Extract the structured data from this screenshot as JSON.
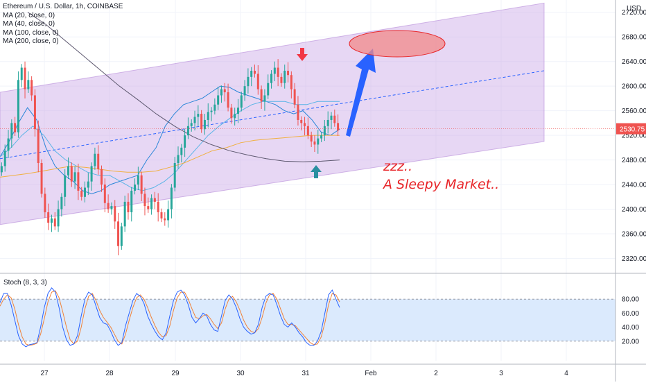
{
  "chart_data": {
    "type": "candlestick",
    "title": "Ethereum / U.S. Dollar, 1h, COINBASE",
    "currency": "USD",
    "indicators": [
      "MA (20, close, 0)",
      "MA (40, close, 0)",
      "MA (100, close, 0)",
      "MA (200, close, 0)"
    ],
    "last_price": "2530.75",
    "x_ticks": [
      "27",
      "28",
      "29",
      "30",
      "31",
      "Feb",
      "2",
      "3",
      "4"
    ],
    "y_ticks": [
      2320,
      2360,
      2400,
      2440,
      2480,
      2520,
      2560,
      2600,
      2640,
      2680,
      2720
    ],
    "ylim": [
      2298,
      2740
    ],
    "candle_closes": [
      2470,
      2495,
      2515,
      2540,
      2525,
      2610,
      2630,
      2595,
      2610,
      2585,
      2530,
      2475,
      2425,
      2395,
      2378,
      2385,
      2372,
      2400,
      2420,
      2455,
      2470,
      2445,
      2460,
      2430,
      2420,
      2435,
      2445,
      2470,
      2490,
      2465,
      2440,
      2410,
      2400,
      2405,
      2380,
      2340,
      2372,
      2412,
      2395,
      2430,
      2440,
      2455,
      2425,
      2405,
      2400,
      2418,
      2412,
      2395,
      2385,
      2382,
      2400,
      2435,
      2475,
      2488,
      2500,
      2520,
      2535,
      2540,
      2550,
      2555,
      2530,
      2545,
      2558,
      2560,
      2570,
      2585,
      2595,
      2590,
      2565,
      2548,
      2555,
      2565,
      2585,
      2600,
      2615,
      2625,
      2620,
      2595,
      2575,
      2585,
      2605,
      2620,
      2630,
      2615,
      2605,
      2625,
      2618,
      2595,
      2570,
      2545,
      2540,
      2535,
      2520,
      2510,
      2505,
      2515,
      2520,
      2535,
      2545,
      2552,
      2540,
      2528
    ],
    "ma_series": [
      {
        "name": "MA (20, close, 0)",
        "color": "#2b86d8",
        "values": [
          2485,
          2510,
          2540,
          2565,
          2545,
          2500,
          2470,
          2455,
          2445,
          2430,
          2425,
          2430,
          2440,
          2445,
          2450,
          2455,
          2480,
          2500,
          2535,
          2555,
          2570,
          2575,
          2580,
          2590,
          2600,
          2598,
          2590,
          2585,
          2580,
          2575,
          2570,
          2560,
          2555,
          2560,
          2545,
          2525,
          2520,
          2530
        ]
      },
      {
        "name": "MA (40, close, 0)",
        "color": "#5ab4e6",
        "values": [
          2485,
          2500,
          2520,
          2535,
          2520,
          2495,
          2480,
          2470,
          2460,
          2455,
          2455,
          2445,
          2435,
          2430,
          2435,
          2445,
          2460,
          2480,
          2500,
          2520,
          2535,
          2548,
          2560,
          2570,
          2575,
          2575,
          2575,
          2570,
          2570,
          2575,
          2575,
          2575
        ]
      },
      {
        "name": "MA (100, close, 0)",
        "color": "#f0b040",
        "values": [
          2452,
          2455,
          2458,
          2462,
          2466,
          2470,
          2468,
          2465,
          2462,
          2460,
          2460,
          2462,
          2468,
          2475,
          2485,
          2495,
          2500,
          2508,
          2512,
          2514,
          2516,
          2518,
          2520,
          2520,
          2520
        ]
      },
      {
        "name": "MA (200, close, 0)",
        "color": "#5e5970",
        "values": [
          2720,
          2700,
          2675,
          2650,
          2625,
          2600,
          2578,
          2555,
          2535,
          2518,
          2505,
          2495,
          2488,
          2482,
          2478,
          2477,
          2478,
          2480
        ]
      }
    ],
    "channel": {
      "upper": [
        2590,
        2735
      ],
      "lower": [
        2375,
        2510
      ]
    },
    "midline": [
      2482,
      2625
    ],
    "stochastic": {
      "name": "Stoch (8, 3, 3)",
      "y_ticks": [
        20,
        40,
        60,
        80
      ],
      "upper_band": 80,
      "lower_band": 20,
      "k": [
        75,
        88,
        88,
        72,
        50,
        28,
        16,
        12,
        15,
        16,
        18,
        40,
        68,
        88,
        96,
        90,
        68,
        40,
        22,
        14,
        16,
        28,
        56,
        80,
        90,
        86,
        70,
        54,
        46,
        44,
        34,
        22,
        14,
        18,
        42,
        60,
        78,
        88,
        84,
        74,
        56,
        44,
        34,
        26,
        22,
        32,
        56,
        78,
        90,
        93,
        86,
        72,
        54,
        46,
        52,
        60,
        56,
        44,
        36,
        34,
        56,
        78,
        86,
        80,
        68,
        52,
        40,
        34,
        30,
        32,
        44,
        68,
        84,
        88,
        86,
        72,
        56,
        44,
        40,
        46,
        40,
        32,
        26,
        18,
        14,
        14,
        20,
        34,
        60,
        86,
        93,
        80,
        68
      ],
      "d": [
        70,
        80,
        86,
        82,
        66,
        44,
        26,
        16,
        14,
        15,
        17,
        30,
        52,
        76,
        90,
        92,
        82,
        62,
        40,
        22,
        16,
        20,
        40,
        66,
        84,
        88,
        78,
        64,
        54,
        47,
        40,
        30,
        20,
        16,
        30,
        50,
        68,
        82,
        86,
        80,
        68,
        54,
        42,
        32,
        26,
        28,
        42,
        64,
        82,
        90,
        90,
        80,
        66,
        54,
        52,
        56,
        58,
        52,
        44,
        38,
        46,
        66,
        80,
        84,
        76,
        64,
        50,
        40,
        34,
        32,
        38,
        54,
        74,
        86,
        88,
        80,
        66,
        52,
        44,
        44,
        42,
        36,
        30,
        24,
        18,
        15,
        16,
        26,
        46,
        72,
        88,
        86,
        76
      ]
    },
    "annotation_line1": "zzz..",
    "annotation_line2": "A Sleepy Market..",
    "colors": {
      "up": "#26a69a",
      "down": "#ef5350",
      "channel": "#c9a6e6",
      "arrow": "#2962ff",
      "target": "#f28a8a",
      "annotation": "#e8262a"
    }
  }
}
